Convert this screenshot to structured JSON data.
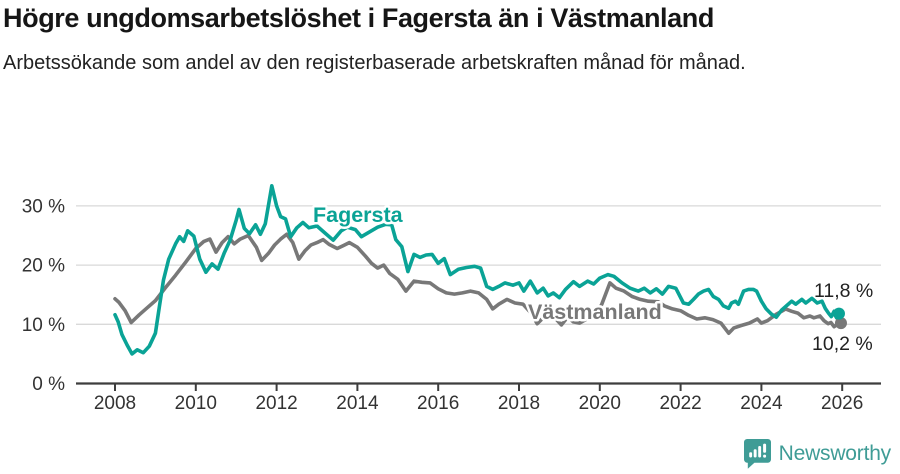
{
  "header": {
    "title": "Högre ungdomsarbetslöshet i Fagersta än i Västmanland",
    "subtitle": "Arbetssökande som andel av den registerbaserade arbetskraften månad för månad."
  },
  "chart_data": {
    "type": "line",
    "title": "Högre ungdomsarbetslöshet i Fagersta än i Västmanland",
    "subtitle": "Arbetssökande som andel av den registerbaserade arbetskraften månad för månad.",
    "unit": "%",
    "grid": "horizontal",
    "x_axis": {
      "ticks": [
        "2008",
        "2010",
        "2012",
        "2014",
        "2016",
        "2018",
        "2020",
        "2022",
        "2024",
        "2026"
      ],
      "range": [
        2007.0,
        2026.9
      ]
    },
    "y_axis": {
      "tick_labels": [
        "0 %",
        "10 %",
        "20 %",
        "30 %"
      ],
      "tick_values": [
        0,
        10,
        20,
        30
      ],
      "range": [
        0,
        34
      ]
    },
    "series": [
      {
        "name": "Fagersta",
        "color": "#0aa396",
        "end_label": "11,8 %",
        "end_value": 11.8,
        "points": [
          [
            2008.0,
            11.6
          ],
          [
            2008.08,
            10.4
          ],
          [
            2008.17,
            8.3
          ],
          [
            2008.3,
            6.5
          ],
          [
            2008.42,
            5.0
          ],
          [
            2008.55,
            5.7
          ],
          [
            2008.7,
            5.2
          ],
          [
            2008.85,
            6.3
          ],
          [
            2009.0,
            8.5
          ],
          [
            2009.1,
            13.0
          ],
          [
            2009.2,
            17.5
          ],
          [
            2009.33,
            21.0
          ],
          [
            2009.5,
            23.6
          ],
          [
            2009.6,
            24.8
          ],
          [
            2009.7,
            24.0
          ],
          [
            2009.8,
            25.8
          ],
          [
            2009.95,
            24.9
          ],
          [
            2010.1,
            21.0
          ],
          [
            2010.25,
            18.8
          ],
          [
            2010.4,
            20.2
          ],
          [
            2010.55,
            19.3
          ],
          [
            2010.7,
            22.0
          ],
          [
            2010.85,
            24.2
          ],
          [
            2011.0,
            27.6
          ],
          [
            2011.07,
            29.4
          ],
          [
            2011.2,
            26.2
          ],
          [
            2011.33,
            25.3
          ],
          [
            2011.48,
            26.8
          ],
          [
            2011.6,
            25.2
          ],
          [
            2011.72,
            27.0
          ],
          [
            2011.88,
            33.4
          ],
          [
            2012.0,
            30.0
          ],
          [
            2012.1,
            28.2
          ],
          [
            2012.22,
            27.8
          ],
          [
            2012.35,
            24.8
          ],
          [
            2012.5,
            26.3
          ],
          [
            2012.65,
            27.2
          ],
          [
            2012.8,
            26.3
          ],
          [
            2013.0,
            26.6
          ],
          [
            2013.2,
            25.4
          ],
          [
            2013.4,
            24.2
          ],
          [
            2013.6,
            25.8
          ],
          [
            2013.75,
            26.4
          ],
          [
            2013.95,
            26.0
          ],
          [
            2014.1,
            24.8
          ],
          [
            2014.3,
            25.6
          ],
          [
            2014.5,
            26.4
          ],
          [
            2014.7,
            26.9
          ],
          [
            2014.85,
            26.8
          ],
          [
            2014.95,
            24.3
          ],
          [
            2015.1,
            23.1
          ],
          [
            2015.25,
            18.9
          ],
          [
            2015.4,
            21.8
          ],
          [
            2015.55,
            21.3
          ],
          [
            2015.7,
            21.7
          ],
          [
            2015.85,
            21.8
          ],
          [
            2016.0,
            20.3
          ],
          [
            2016.15,
            21.1
          ],
          [
            2016.3,
            18.4
          ],
          [
            2016.5,
            19.3
          ],
          [
            2016.7,
            19.6
          ],
          [
            2016.9,
            19.8
          ],
          [
            2017.05,
            19.5
          ],
          [
            2017.2,
            16.4
          ],
          [
            2017.35,
            15.9
          ],
          [
            2017.5,
            16.4
          ],
          [
            2017.65,
            17.0
          ],
          [
            2017.85,
            16.6
          ],
          [
            2018.0,
            17.0
          ],
          [
            2018.12,
            15.6
          ],
          [
            2018.28,
            17.3
          ],
          [
            2018.45,
            15.3
          ],
          [
            2018.6,
            16.1
          ],
          [
            2018.72,
            14.8
          ],
          [
            2018.85,
            15.3
          ],
          [
            2019.0,
            14.5
          ],
          [
            2019.15,
            15.9
          ],
          [
            2019.35,
            17.2
          ],
          [
            2019.5,
            16.4
          ],
          [
            2019.7,
            17.3
          ],
          [
            2019.85,
            16.8
          ],
          [
            2020.0,
            17.8
          ],
          [
            2020.2,
            18.4
          ],
          [
            2020.35,
            18.1
          ],
          [
            2020.55,
            17.0
          ],
          [
            2020.75,
            16.1
          ],
          [
            2020.95,
            15.6
          ],
          [
            2021.1,
            16.1
          ],
          [
            2021.25,
            15.3
          ],
          [
            2021.4,
            16.0
          ],
          [
            2021.55,
            15.1
          ],
          [
            2021.7,
            16.4
          ],
          [
            2021.88,
            16.1
          ],
          [
            2022.07,
            13.6
          ],
          [
            2022.2,
            13.4
          ],
          [
            2022.32,
            14.2
          ],
          [
            2022.44,
            15.1
          ],
          [
            2022.57,
            15.6
          ],
          [
            2022.69,
            15.9
          ],
          [
            2022.81,
            14.7
          ],
          [
            2022.94,
            14.2
          ],
          [
            2023.06,
            13.1
          ],
          [
            2023.19,
            12.7
          ],
          [
            2023.26,
            13.6
          ],
          [
            2023.36,
            13.9
          ],
          [
            2023.43,
            13.4
          ],
          [
            2023.56,
            15.6
          ],
          [
            2023.68,
            15.9
          ],
          [
            2023.8,
            15.9
          ],
          [
            2023.88,
            15.6
          ],
          [
            2024.0,
            13.9
          ],
          [
            2024.12,
            12.6
          ],
          [
            2024.25,
            11.7
          ],
          [
            2024.37,
            11.2
          ],
          [
            2024.5,
            12.4
          ],
          [
            2024.62,
            13.1
          ],
          [
            2024.75,
            13.9
          ],
          [
            2024.85,
            13.4
          ],
          [
            2025.0,
            14.2
          ],
          [
            2025.1,
            13.6
          ],
          [
            2025.25,
            14.4
          ],
          [
            2025.38,
            13.6
          ],
          [
            2025.5,
            13.9
          ],
          [
            2025.58,
            12.7
          ],
          [
            2025.66,
            11.9
          ],
          [
            2025.73,
            11.3
          ],
          [
            2025.8,
            12.2
          ],
          [
            2025.86,
            11.1
          ],
          [
            2025.92,
            11.8
          ]
        ]
      },
      {
        "name": "Västmanland",
        "color": "#787878",
        "end_label": "10,2 %",
        "end_value": 10.2,
        "points": [
          [
            2008.0,
            14.3
          ],
          [
            2008.1,
            13.7
          ],
          [
            2008.25,
            12.3
          ],
          [
            2008.4,
            10.3
          ],
          [
            2008.6,
            11.6
          ],
          [
            2008.8,
            12.8
          ],
          [
            2009.0,
            14.0
          ],
          [
            2009.25,
            16.2
          ],
          [
            2009.5,
            18.3
          ],
          [
            2009.75,
            20.5
          ],
          [
            2010.0,
            22.8
          ],
          [
            2010.2,
            24.0
          ],
          [
            2010.35,
            24.4
          ],
          [
            2010.5,
            22.2
          ],
          [
            2010.65,
            23.8
          ],
          [
            2010.8,
            24.8
          ],
          [
            2010.95,
            23.6
          ],
          [
            2011.1,
            24.4
          ],
          [
            2011.3,
            25.0
          ],
          [
            2011.5,
            23.0
          ],
          [
            2011.63,
            20.8
          ],
          [
            2011.8,
            22.0
          ],
          [
            2011.95,
            23.4
          ],
          [
            2012.1,
            24.4
          ],
          [
            2012.25,
            25.2
          ],
          [
            2012.4,
            23.8
          ],
          [
            2012.55,
            21.0
          ],
          [
            2012.7,
            22.4
          ],
          [
            2012.85,
            23.4
          ],
          [
            2013.0,
            23.8
          ],
          [
            2013.15,
            24.3
          ],
          [
            2013.3,
            23.5
          ],
          [
            2013.5,
            22.8
          ],
          [
            2013.65,
            23.3
          ],
          [
            2013.8,
            23.8
          ],
          [
            2014.0,
            23.0
          ],
          [
            2014.2,
            21.5
          ],
          [
            2014.35,
            20.3
          ],
          [
            2014.5,
            19.5
          ],
          [
            2014.65,
            20.0
          ],
          [
            2014.8,
            18.6
          ],
          [
            2015.0,
            17.6
          ],
          [
            2015.2,
            15.6
          ],
          [
            2015.4,
            17.3
          ],
          [
            2015.6,
            17.1
          ],
          [
            2015.8,
            17.0
          ],
          [
            2016.0,
            16.0
          ],
          [
            2016.2,
            15.3
          ],
          [
            2016.4,
            15.1
          ],
          [
            2016.6,
            15.3
          ],
          [
            2016.8,
            15.6
          ],
          [
            2017.0,
            15.3
          ],
          [
            2017.2,
            14.2
          ],
          [
            2017.35,
            12.6
          ],
          [
            2017.5,
            13.4
          ],
          [
            2017.7,
            14.2
          ],
          [
            2017.9,
            13.6
          ],
          [
            2018.1,
            13.4
          ],
          [
            2018.3,
            11.9
          ],
          [
            2018.45,
            10.1
          ],
          [
            2018.6,
            11.1
          ],
          [
            2018.75,
            11.7
          ],
          [
            2018.9,
            11.0
          ],
          [
            2019.05,
            9.9
          ],
          [
            2019.2,
            11.2
          ],
          [
            2019.35,
            10.4
          ],
          [
            2019.5,
            10.2
          ],
          [
            2019.7,
            11.0
          ],
          [
            2019.9,
            11.6
          ],
          [
            2020.05,
            13.4
          ],
          [
            2020.25,
            17.0
          ],
          [
            2020.4,
            16.1
          ],
          [
            2020.6,
            15.6
          ],
          [
            2020.8,
            14.7
          ],
          [
            2021.0,
            14.2
          ],
          [
            2021.2,
            13.9
          ],
          [
            2021.45,
            13.8
          ],
          [
            2021.6,
            13.1
          ],
          [
            2021.8,
            12.6
          ],
          [
            2022.0,
            12.3
          ],
          [
            2022.2,
            11.5
          ],
          [
            2022.4,
            10.9
          ],
          [
            2022.6,
            11.1
          ],
          [
            2022.8,
            10.8
          ],
          [
            2023.0,
            10.2
          ],
          [
            2023.19,
            8.5
          ],
          [
            2023.32,
            9.4
          ],
          [
            2023.5,
            9.8
          ],
          [
            2023.7,
            10.2
          ],
          [
            2023.9,
            10.9
          ],
          [
            2024.0,
            10.2
          ],
          [
            2024.15,
            10.6
          ],
          [
            2024.37,
            11.7
          ],
          [
            2024.5,
            12.2
          ],
          [
            2024.6,
            12.6
          ],
          [
            2024.75,
            12.2
          ],
          [
            2024.9,
            11.9
          ],
          [
            2025.05,
            11.1
          ],
          [
            2025.2,
            11.4
          ],
          [
            2025.3,
            11.1
          ],
          [
            2025.45,
            11.4
          ],
          [
            2025.55,
            10.6
          ],
          [
            2025.65,
            10.1
          ],
          [
            2025.72,
            10.3
          ],
          [
            2025.8,
            9.6
          ],
          [
            2025.86,
            9.9
          ],
          [
            2025.92,
            10.2
          ]
        ]
      }
    ],
    "legend_position": "inline-labels"
  },
  "colors": {
    "accent_teal": "#0aa396",
    "series_gray": "#787878",
    "grid": "#d9d9d9",
    "axis": "#3d3d3d",
    "text_dark": "#161616",
    "text_mid": "#333333",
    "brand_teal": "#3f9c96"
  },
  "footer": {
    "brand": "Newsworthy"
  }
}
